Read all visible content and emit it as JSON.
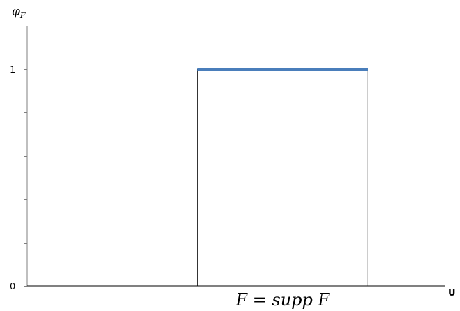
{
  "chart_data": {
    "type": "line",
    "title": "",
    "ylabel": {
      "base": "φ",
      "sub": "F"
    },
    "xlabel": "U",
    "x_range": [
      0,
      1
    ],
    "ylim": [
      0,
      1
    ],
    "y_ticks": [
      0,
      0.2,
      0.4,
      0.6,
      0.8,
      1.0
    ],
    "y_tick_labels": [
      {
        "value": 0,
        "label": "0"
      },
      {
        "value": 1,
        "label": "1"
      }
    ],
    "support": [
      0.4,
      0.8
    ],
    "series": [
      {
        "points": [
          [
            0.4,
            1
          ],
          [
            0.8,
            1
          ]
        ],
        "color": "#4a7ebb"
      }
    ],
    "annotation": "F = supp F",
    "grid": false,
    "colors": {
      "axis": "#000000",
      "tick": "#7f7f7f",
      "series": "#4a7ebb",
      "outline": "#000000"
    }
  }
}
